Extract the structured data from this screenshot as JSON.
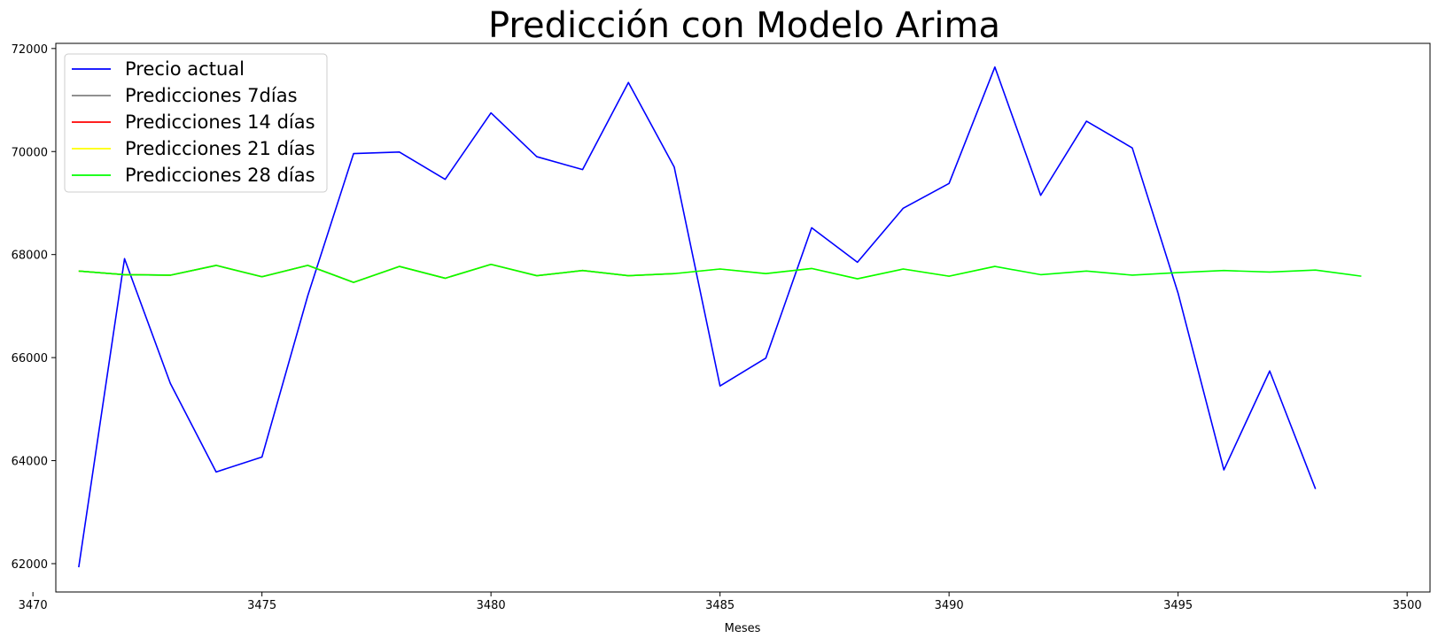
{
  "chart_data": {
    "type": "line",
    "title": "Predicción con Modelo Arima",
    "xlabel": "Meses",
    "ylabel": "",
    "xlim": [
      3470.5,
      3500.5
    ],
    "ylim": [
      61450,
      72100
    ],
    "xticks": [
      3470,
      3475,
      3480,
      3485,
      3490,
      3495,
      3500
    ],
    "yticks": [
      62000,
      64000,
      66000,
      68000,
      70000,
      72000
    ],
    "grid": false,
    "legend_position": "upper-left",
    "series": [
      {
        "name": "Precio actual",
        "color": "#0000ff",
        "x": [
          3471,
          3472,
          3473,
          3474,
          3475,
          3476,
          3477,
          3478,
          3479,
          3480,
          3481,
          3482,
          3483,
          3484,
          3485,
          3486,
          3487,
          3488,
          3489,
          3490,
          3491,
          3492,
          3493,
          3494,
          3495,
          3496,
          3497,
          3498
        ],
        "y": [
          61930,
          67920,
          65500,
          63780,
          64070,
          67200,
          69960,
          69990,
          69460,
          70750,
          69900,
          69650,
          71340,
          69700,
          65450,
          65990,
          68520,
          67850,
          68900,
          69380,
          71640,
          69150,
          70590,
          70070,
          67250,
          63820,
          65740,
          63450
        ]
      },
      {
        "name": "Predicciones 7días",
        "color": "#808080",
        "x": [
          3471,
          3472,
          3473,
          3474,
          3475,
          3476,
          3477
        ],
        "y": [
          67680,
          67610,
          67600,
          67790,
          67570,
          67790,
          67460
        ]
      },
      {
        "name": "Predicciones 14 días",
        "color": "#ff0000",
        "x": [
          3471,
          3472,
          3473,
          3474,
          3475,
          3476,
          3477,
          3478,
          3479,
          3480,
          3481,
          3482,
          3483,
          3484
        ],
        "y": [
          67680,
          67610,
          67600,
          67790,
          67570,
          67790,
          67460,
          67770,
          67540,
          67810,
          67590,
          67690,
          67590,
          67630
        ]
      },
      {
        "name": "Predicciones 21 días",
        "color": "#ffff00",
        "x": [
          3471,
          3472,
          3473,
          3474,
          3475,
          3476,
          3477,
          3478,
          3479,
          3480,
          3481,
          3482,
          3483,
          3484,
          3485,
          3486,
          3487,
          3488,
          3489,
          3490,
          3491
        ],
        "y": [
          67680,
          67610,
          67600,
          67790,
          67570,
          67790,
          67460,
          67770,
          67540,
          67810,
          67590,
          67690,
          67590,
          67630,
          67720,
          67630,
          67730,
          67530,
          67720,
          67580,
          67770
        ]
      },
      {
        "name": "Predicciones 28 días",
        "color": "#00ff00",
        "x": [
          3471,
          3472,
          3473,
          3474,
          3475,
          3476,
          3477,
          3478,
          3479,
          3480,
          3481,
          3482,
          3483,
          3484,
          3485,
          3486,
          3487,
          3488,
          3489,
          3490,
          3491,
          3492,
          3493,
          3494,
          3495,
          3496,
          3497,
          3498,
          3499
        ],
        "y": [
          67680,
          67610,
          67600,
          67790,
          67570,
          67790,
          67460,
          67770,
          67540,
          67810,
          67590,
          67690,
          67590,
          67630,
          67720,
          67630,
          67730,
          67530,
          67720,
          67580,
          67770,
          67610,
          67680,
          67600,
          67650,
          67690,
          67660,
          67700,
          67580
        ]
      }
    ]
  }
}
